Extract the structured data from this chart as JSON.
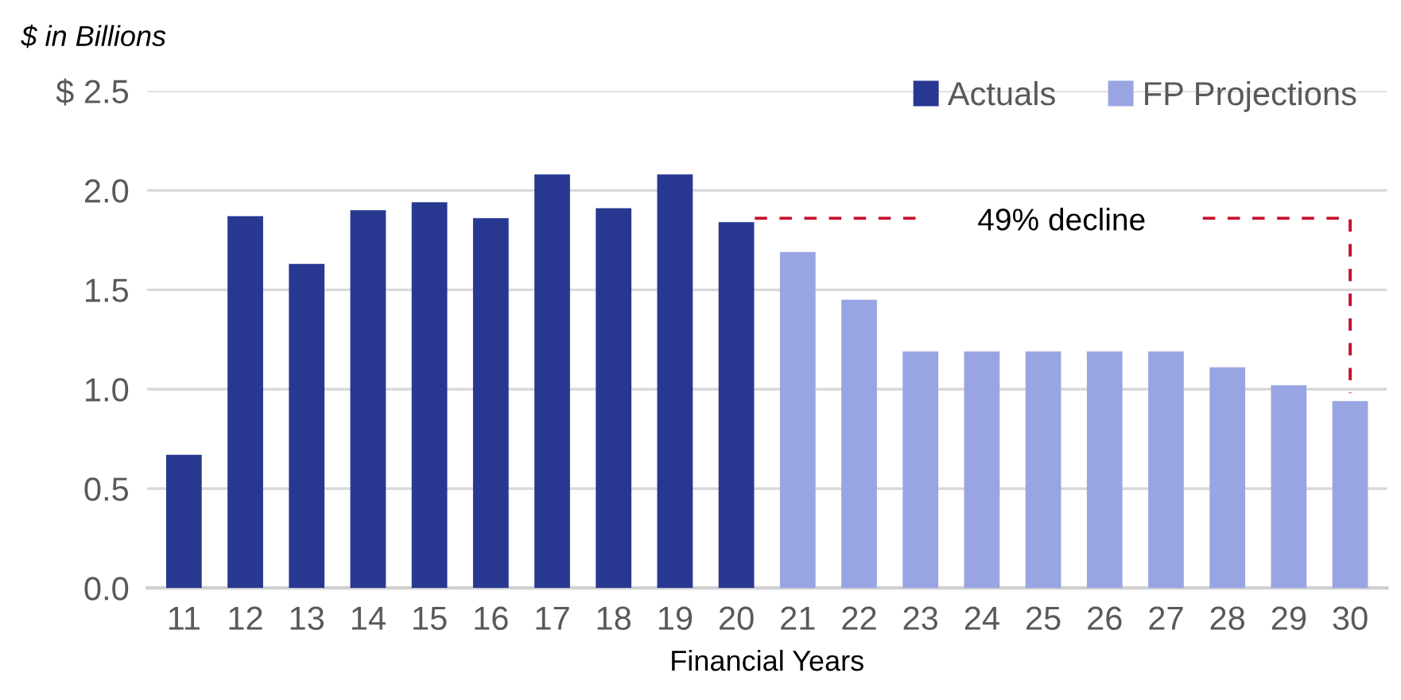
{
  "chart_data": {
    "type": "bar",
    "ylabel": "$ in Billions",
    "xlabel": "Financial Years",
    "categories": [
      "11",
      "12",
      "13",
      "14",
      "15",
      "16",
      "17",
      "18",
      "19",
      "20",
      "21",
      "22",
      "23",
      "24",
      "25",
      "26",
      "27",
      "28",
      "29",
      "30"
    ],
    "series": [
      {
        "name": "Actuals",
        "color": "#283891",
        "values": [
          0.67,
          1.87,
          1.63,
          1.9,
          1.94,
          1.86,
          2.08,
          1.91,
          2.08,
          1.84,
          null,
          null,
          null,
          null,
          null,
          null,
          null,
          null,
          null,
          null
        ]
      },
      {
        "name": "FP Projections",
        "color": "#99a5e3",
        "values": [
          null,
          null,
          null,
          null,
          null,
          null,
          null,
          null,
          null,
          null,
          1.69,
          1.45,
          1.19,
          1.19,
          1.19,
          1.19,
          1.19,
          1.11,
          1.02,
          0.94
        ]
      }
    ],
    "ylim": [
      0,
      2.5
    ],
    "yticks": [
      {
        "value": 0,
        "label": "0.0"
      },
      0.5,
      {
        "value": 1,
        "label": "1.0"
      },
      1.5,
      {
        "value": 2,
        "label": "2.0"
      },
      {
        "value": 2.5,
        "label": "$ 2.5"
      }
    ],
    "grid": "y",
    "legend": "top right",
    "annotations": [
      "49% decline"
    ]
  }
}
